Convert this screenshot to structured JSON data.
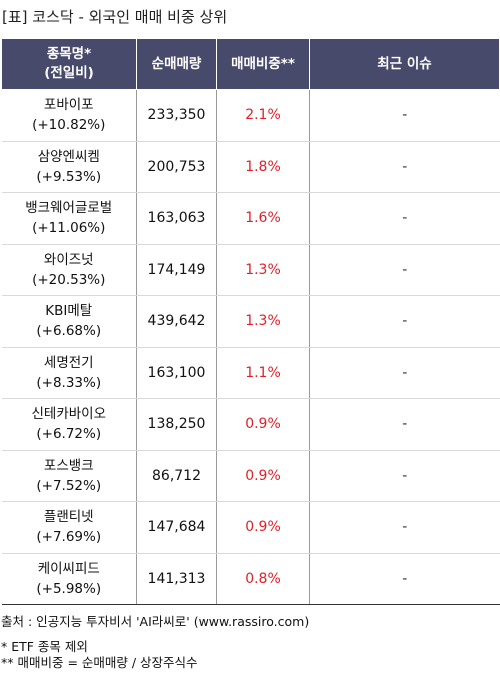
{
  "title": "[표] 코스닥 - 외국인 매매 비중 상위",
  "headers": {
    "name": "종목명*",
    "name_sub": "(전일비)",
    "volume": "순매매량",
    "ratio": "매매비중**",
    "issue": "최근 이슈"
  },
  "rows": [
    {
      "name": "포바이포",
      "change": "(+10.82%)",
      "volume": "233,350",
      "ratio": "2.1%",
      "issue": "-"
    },
    {
      "name": "삼양엔씨켐",
      "change": "(+9.53%)",
      "volume": "200,753",
      "ratio": "1.8%",
      "issue": "-"
    },
    {
      "name": "뱅크웨어글로벌",
      "change": "(+11.06%)",
      "volume": "163,063",
      "ratio": "1.6%",
      "issue": "-"
    },
    {
      "name": "와이즈넛",
      "change": "(+20.53%)",
      "volume": "174,149",
      "ratio": "1.3%",
      "issue": "-"
    },
    {
      "name": "KBI메탈",
      "change": "(+6.68%)",
      "volume": "439,642",
      "ratio": "1.3%",
      "issue": "-"
    },
    {
      "name": "세명전기",
      "change": "(+8.33%)",
      "volume": "163,100",
      "ratio": "1.1%",
      "issue": "-"
    },
    {
      "name": "신테카바이오",
      "change": "(+6.72%)",
      "volume": "138,250",
      "ratio": "0.9%",
      "issue": "-"
    },
    {
      "name": "포스뱅크",
      "change": "(+7.52%)",
      "volume": "86,712",
      "ratio": "0.9%",
      "issue": "-"
    },
    {
      "name": "플랜티넷",
      "change": "(+7.69%)",
      "volume": "147,684",
      "ratio": "0.9%",
      "issue": "-"
    },
    {
      "name": "케이씨피드",
      "change": "(+5.98%)",
      "volume": "141,313",
      "ratio": "0.8%",
      "issue": "-"
    }
  ],
  "footer": {
    "source": "출처 : 인공지능 투자비서 'AI라씨로' (www.rassiro.com)",
    "note1": "* ETF 종목 제외",
    "note2": "** 매매비중 = 순매매량 / 상장주식수"
  },
  "colors": {
    "header_bg": "#474a6b",
    "ratio_text": "#e0202a"
  }
}
